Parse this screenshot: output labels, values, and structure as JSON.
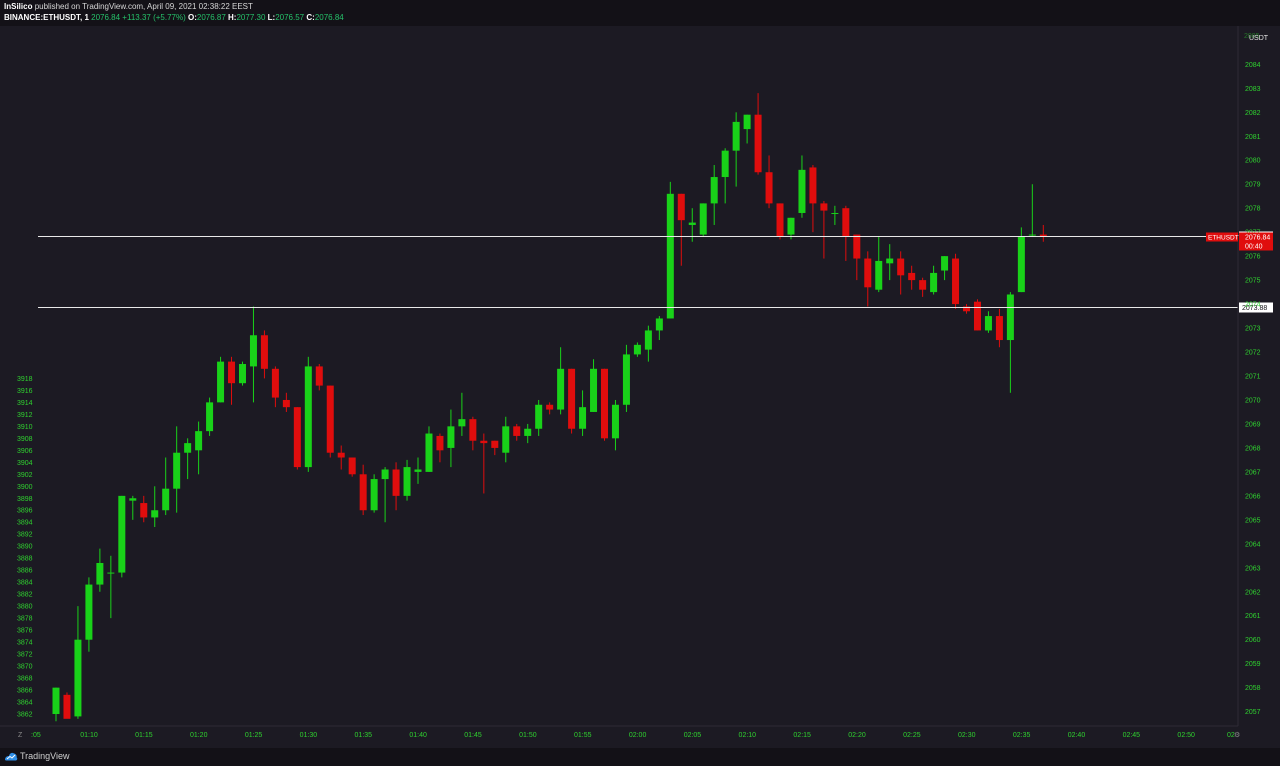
{
  "header": {
    "author": "InSilico",
    "published": "published on TradingView.com, April 09, 2021 02:38:22 EEST",
    "symbol": "BINANCE:ETHUSDT, 1",
    "last": "2076.84",
    "change": "+113.37 (+5.77%)",
    "o_label": "O:",
    "o_value": "2076.87",
    "h_label": "H:",
    "h_value": "2077.30",
    "l_label": "L:",
    "l_value": "2076.57",
    "c_label": "C:",
    "c_value": "2076.84"
  },
  "footer": {
    "brand": "TradingView",
    "logo_icon": "tradingview-logo-icon"
  },
  "colors": {
    "up": "#19d219",
    "down": "#e00d0d",
    "axis_text": "#2fd12f",
    "background": "#1c1a23"
  },
  "chart_data": {
    "type": "candlestick",
    "title": "BINANCE:ETHUSDT, 1",
    "left_axis": {
      "ticks": [
        3862,
        3864,
        3866,
        3868,
        3870,
        3872,
        3874,
        3876,
        3878,
        3880,
        3882,
        3884,
        3886,
        3888,
        3890,
        3892,
        3894,
        3896,
        3898,
        3900,
        3902,
        3904,
        3906,
        3908,
        3910,
        3912,
        3914,
        3916,
        3918
      ]
    },
    "right_axis": {
      "range": [
        2056.4,
        2085.6
      ],
      "currency": "USDT",
      "ticks": [
        2057,
        2058,
        2059,
        2060,
        2061,
        2062,
        2063,
        2064,
        2065,
        2066,
        2067,
        2068,
        2069,
        2070,
        2071,
        2072,
        2073,
        2074,
        2075,
        2076,
        2077,
        2078,
        2079,
        2080,
        2081,
        2082,
        2083,
        2084
      ],
      "partial_top_tick": "2085"
    },
    "x_axis": {
      "ticks": [
        "01:10",
        "01:15",
        "01:20",
        "01:25",
        "01:30",
        "01:35",
        "01:40",
        "01:45",
        "01:50",
        "01:55",
        "02:00",
        "02:05",
        "02:10",
        "02:15",
        "02:20",
        "02:25",
        "02:30",
        "02:35",
        "02:40",
        "02:45",
        "02:50"
      ],
      "left_partial": ":05",
      "right_partial": "02",
      "corner_labels": [
        "Z",
        "⚙"
      ]
    },
    "horizontal_lines": [
      {
        "value": 2076.85,
        "label": "2076.85"
      },
      {
        "value": 2073.88,
        "label": "2073.88"
      }
    ],
    "price_tag": {
      "symbol": "ETHUSDT",
      "price": "2076.84",
      "countdown": "00:40"
    },
    "candles": [
      {
        "t": "01:07",
        "o": 2056.9,
        "h": 2058.0,
        "l": 2056.6,
        "c": 2058.0
      },
      {
        "t": "01:08",
        "o": 2057.7,
        "h": 2057.8,
        "l": 2056.8,
        "c": 2056.7
      },
      {
        "t": "01:09",
        "o": 2056.8,
        "h": 2061.4,
        "l": 2056.7,
        "c": 2060.0
      },
      {
        "t": "01:10",
        "o": 2060.0,
        "h": 2062.6,
        "l": 2059.5,
        "c": 2062.3
      },
      {
        "t": "01:11",
        "o": 2062.3,
        "h": 2063.8,
        "l": 2062.0,
        "c": 2063.2
      },
      {
        "t": "01:12",
        "o": 2062.8,
        "h": 2063.5,
        "l": 2060.9,
        "c": 2062.8
      },
      {
        "t": "01:13",
        "o": 2062.8,
        "h": 2066.0,
        "l": 2062.6,
        "c": 2066.0
      },
      {
        "t": "01:14",
        "o": 2065.8,
        "h": 2066.0,
        "l": 2065.0,
        "c": 2065.9
      },
      {
        "t": "01:15",
        "o": 2065.7,
        "h": 2066.0,
        "l": 2064.9,
        "c": 2065.1
      },
      {
        "t": "01:16",
        "o": 2065.1,
        "h": 2066.4,
        "l": 2064.7,
        "c": 2065.4
      },
      {
        "t": "01:17",
        "o": 2065.4,
        "h": 2067.6,
        "l": 2065.2,
        "c": 2066.3
      },
      {
        "t": "01:18",
        "o": 2066.3,
        "h": 2068.9,
        "l": 2065.3,
        "c": 2067.8
      },
      {
        "t": "01:19",
        "o": 2067.8,
        "h": 2068.4,
        "l": 2066.7,
        "c": 2068.2
      },
      {
        "t": "01:20",
        "o": 2067.9,
        "h": 2069.1,
        "l": 2066.9,
        "c": 2068.7
      },
      {
        "t": "01:21",
        "o": 2068.7,
        "h": 2070.1,
        "l": 2068.5,
        "c": 2069.9
      },
      {
        "t": "01:22",
        "o": 2069.9,
        "h": 2071.8,
        "l": 2069.9,
        "c": 2071.6
      },
      {
        "t": "01:23",
        "o": 2071.6,
        "h": 2071.8,
        "l": 2069.8,
        "c": 2070.7
      },
      {
        "t": "01:24",
        "o": 2070.7,
        "h": 2071.6,
        "l": 2070.6,
        "c": 2071.5
      },
      {
        "t": "01:25",
        "o": 2071.4,
        "h": 2073.9,
        "l": 2069.9,
        "c": 2072.7
      },
      {
        "t": "01:26",
        "o": 2072.7,
        "h": 2072.9,
        "l": 2070.9,
        "c": 2071.3
      },
      {
        "t": "01:27",
        "o": 2071.3,
        "h": 2071.4,
        "l": 2069.7,
        "c": 2070.1
      },
      {
        "t": "01:28",
        "o": 2070.0,
        "h": 2070.3,
        "l": 2069.5,
        "c": 2069.7
      },
      {
        "t": "01:29",
        "o": 2069.7,
        "h": 2069.7,
        "l": 2067.1,
        "c": 2067.2
      },
      {
        "t": "01:30",
        "o": 2067.2,
        "h": 2071.8,
        "l": 2067.0,
        "c": 2071.4
      },
      {
        "t": "01:31",
        "o": 2071.4,
        "h": 2071.5,
        "l": 2070.4,
        "c": 2070.6
      },
      {
        "t": "01:32",
        "o": 2070.6,
        "h": 2070.6,
        "l": 2067.6,
        "c": 2067.8
      },
      {
        "t": "01:33",
        "o": 2067.8,
        "h": 2068.1,
        "l": 2067.1,
        "c": 2067.6
      },
      {
        "t": "01:34",
        "o": 2067.6,
        "h": 2067.6,
        "l": 2066.8,
        "c": 2066.9
      },
      {
        "t": "01:35",
        "o": 2066.9,
        "h": 2067.3,
        "l": 2065.2,
        "c": 2065.4
      },
      {
        "t": "01:36",
        "o": 2065.4,
        "h": 2066.9,
        "l": 2065.3,
        "c": 2066.7
      },
      {
        "t": "01:37",
        "o": 2066.7,
        "h": 2067.2,
        "l": 2064.9,
        "c": 2067.1
      },
      {
        "t": "01:38",
        "o": 2067.1,
        "h": 2067.4,
        "l": 2065.4,
        "c": 2066.0
      },
      {
        "t": "01:39",
        "o": 2066.0,
        "h": 2067.5,
        "l": 2065.8,
        "c": 2067.2
      },
      {
        "t": "01:40",
        "o": 2067.0,
        "h": 2067.6,
        "l": 2066.5,
        "c": 2067.1
      },
      {
        "t": "01:41",
        "o": 2067.0,
        "h": 2068.9,
        "l": 2067.0,
        "c": 2068.6
      },
      {
        "t": "01:42",
        "o": 2068.5,
        "h": 2068.6,
        "l": 2067.4,
        "c": 2067.9
      },
      {
        "t": "01:43",
        "o": 2068.0,
        "h": 2069.6,
        "l": 2067.2,
        "c": 2068.9
      },
      {
        "t": "01:44",
        "o": 2068.9,
        "h": 2070.3,
        "l": 2068.5,
        "c": 2069.2
      },
      {
        "t": "01:45",
        "o": 2069.2,
        "h": 2069.3,
        "l": 2067.9,
        "c": 2068.3
      },
      {
        "t": "01:46",
        "o": 2068.3,
        "h": 2068.6,
        "l": 2066.1,
        "c": 2068.2
      },
      {
        "t": "01:47",
        "o": 2068.3,
        "h": 2068.3,
        "l": 2067.7,
        "c": 2068.0
      },
      {
        "t": "01:48",
        "o": 2067.8,
        "h": 2069.3,
        "l": 2067.4,
        "c": 2068.9
      },
      {
        "t": "01:49",
        "o": 2068.9,
        "h": 2069.0,
        "l": 2068.3,
        "c": 2068.5
      },
      {
        "t": "01:50",
        "o": 2068.5,
        "h": 2069.0,
        "l": 2068.2,
        "c": 2068.8
      },
      {
        "t": "01:51",
        "o": 2068.8,
        "h": 2070.0,
        "l": 2068.5,
        "c": 2069.8
      },
      {
        "t": "01:52",
        "o": 2069.8,
        "h": 2069.9,
        "l": 2069.4,
        "c": 2069.6
      },
      {
        "t": "01:53",
        "o": 2069.6,
        "h": 2072.2,
        "l": 2069.4,
        "c": 2071.3
      },
      {
        "t": "01:54",
        "o": 2071.3,
        "h": 2071.3,
        "l": 2068.6,
        "c": 2068.8
      },
      {
        "t": "01:55",
        "o": 2068.8,
        "h": 2070.4,
        "l": 2068.5,
        "c": 2069.7
      },
      {
        "t": "01:56",
        "o": 2069.5,
        "h": 2071.7,
        "l": 2069.5,
        "c": 2071.3
      },
      {
        "t": "01:57",
        "o": 2071.3,
        "h": 2071.3,
        "l": 2068.3,
        "c": 2068.4
      },
      {
        "t": "01:58",
        "o": 2068.4,
        "h": 2070.0,
        "l": 2067.9,
        "c": 2069.8
      },
      {
        "t": "01:59",
        "o": 2069.8,
        "h": 2072.3,
        "l": 2069.5,
        "c": 2071.9
      },
      {
        "t": "02:00",
        "o": 2071.9,
        "h": 2072.4,
        "l": 2071.8,
        "c": 2072.3
      },
      {
        "t": "02:01",
        "o": 2072.1,
        "h": 2073.1,
        "l": 2071.6,
        "c": 2072.9
      },
      {
        "t": "02:02",
        "o": 2072.9,
        "h": 2073.5,
        "l": 2072.5,
        "c": 2073.4
      },
      {
        "t": "02:03",
        "o": 2073.4,
        "h": 2079.1,
        "l": 2073.4,
        "c": 2078.6
      },
      {
        "t": "02:04",
        "o": 2078.6,
        "h": 2078.6,
        "l": 2075.6,
        "c": 2077.5
      },
      {
        "t": "02:05",
        "o": 2077.3,
        "h": 2078.0,
        "l": 2076.6,
        "c": 2077.4
      },
      {
        "t": "02:06",
        "o": 2076.9,
        "h": 2078.2,
        "l": 2076.8,
        "c": 2078.2
      },
      {
        "t": "02:07",
        "o": 2078.2,
        "h": 2079.8,
        "l": 2077.3,
        "c": 2079.3
      },
      {
        "t": "02:08",
        "o": 2079.3,
        "h": 2080.5,
        "l": 2078.2,
        "c": 2080.4
      },
      {
        "t": "02:09",
        "o": 2080.4,
        "h": 2082.0,
        "l": 2078.9,
        "c": 2081.6
      },
      {
        "t": "02:10",
        "o": 2081.3,
        "h": 2081.9,
        "l": 2080.7,
        "c": 2081.9
      },
      {
        "t": "02:11",
        "o": 2081.9,
        "h": 2082.8,
        "l": 2079.4,
        "c": 2079.5
      },
      {
        "t": "02:12",
        "o": 2079.5,
        "h": 2080.2,
        "l": 2078.0,
        "c": 2078.2
      },
      {
        "t": "02:13",
        "o": 2078.2,
        "h": 2078.2,
        "l": 2076.7,
        "c": 2076.8
      },
      {
        "t": "02:14",
        "o": 2076.9,
        "h": 2077.6,
        "l": 2076.7,
        "c": 2077.6
      },
      {
        "t": "02:15",
        "o": 2077.8,
        "h": 2080.2,
        "l": 2077.6,
        "c": 2079.6
      },
      {
        "t": "02:16",
        "o": 2079.7,
        "h": 2079.8,
        "l": 2077.0,
        "c": 2078.2
      },
      {
        "t": "02:17",
        "o": 2078.2,
        "h": 2078.3,
        "l": 2075.9,
        "c": 2077.9
      },
      {
        "t": "02:18",
        "o": 2077.8,
        "h": 2078.1,
        "l": 2077.3,
        "c": 2077.8
      },
      {
        "t": "02:19",
        "o": 2078.0,
        "h": 2078.1,
        "l": 2075.8,
        "c": 2076.8
      },
      {
        "t": "02:20",
        "o": 2076.9,
        "h": 2076.9,
        "l": 2075.0,
        "c": 2075.9
      },
      {
        "t": "02:21",
        "o": 2075.9,
        "h": 2076.2,
        "l": 2073.9,
        "c": 2074.7
      },
      {
        "t": "02:22",
        "o": 2074.6,
        "h": 2076.8,
        "l": 2074.5,
        "c": 2075.8
      },
      {
        "t": "02:23",
        "o": 2075.7,
        "h": 2076.5,
        "l": 2075.0,
        "c": 2075.9
      },
      {
        "t": "02:24",
        "o": 2075.9,
        "h": 2076.2,
        "l": 2074.4,
        "c": 2075.2
      },
      {
        "t": "02:25",
        "o": 2075.3,
        "h": 2075.6,
        "l": 2074.6,
        "c": 2075.0
      },
      {
        "t": "02:26",
        "o": 2075.0,
        "h": 2075.1,
        "l": 2074.3,
        "c": 2074.6
      },
      {
        "t": "02:27",
        "o": 2074.5,
        "h": 2075.6,
        "l": 2074.4,
        "c": 2075.3
      },
      {
        "t": "02:28",
        "o": 2075.4,
        "h": 2076.0,
        "l": 2075.0,
        "c": 2076.0
      },
      {
        "t": "02:29",
        "o": 2075.9,
        "h": 2076.1,
        "l": 2073.8,
        "c": 2074.0
      },
      {
        "t": "02:30",
        "o": 2073.9,
        "h": 2074.0,
        "l": 2073.6,
        "c": 2073.7
      },
      {
        "t": "02:31",
        "o": 2074.1,
        "h": 2074.2,
        "l": 2072.9,
        "c": 2072.9
      },
      {
        "t": "02:32",
        "o": 2072.9,
        "h": 2073.7,
        "l": 2072.8,
        "c": 2073.5
      },
      {
        "t": "02:33",
        "o": 2073.5,
        "h": 2073.8,
        "l": 2072.2,
        "c": 2072.5
      },
      {
        "t": "02:34",
        "o": 2072.5,
        "h": 2074.5,
        "l": 2070.3,
        "c": 2074.4
      },
      {
        "t": "02:35",
        "o": 2074.5,
        "h": 2077.2,
        "l": 2074.5,
        "c": 2076.8
      },
      {
        "t": "02:36",
        "o": 2076.9,
        "h": 2079.0,
        "l": 2076.8,
        "c": 2076.9
      },
      {
        "t": "02:37",
        "o": 2076.9,
        "h": 2077.3,
        "l": 2076.6,
        "c": 2076.84
      }
    ]
  }
}
